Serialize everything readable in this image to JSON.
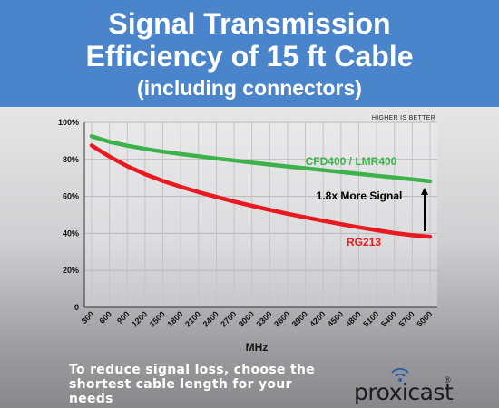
{
  "header": {
    "title_line1": "Signal Transmission",
    "title_line2": "Efficiency of 15 ft Cable",
    "title_line3": "(including connectors)"
  },
  "colors": {
    "header_bg": "#4a84cb",
    "green_series": "#3cb24a",
    "red_series": "#e8191f",
    "arrow": "#000000"
  },
  "chart_data": {
    "type": "line",
    "title": "Signal Transmission Efficiency of 15 ft Cable (including connectors)",
    "xlabel": "MHz",
    "ylabel": "",
    "x": [
      300,
      600,
      900,
      1200,
      1500,
      1800,
      2100,
      2400,
      2700,
      3000,
      3300,
      3600,
      3900,
      4200,
      4500,
      4800,
      5100,
      5400,
      5700,
      6000
    ],
    "x_tick_labels": [
      "300",
      "600",
      "900",
      "1200",
      "1500",
      "1800",
      "2100",
      "2400",
      "2700",
      "3000",
      "3300",
      "3600",
      "3900",
      "4200",
      "4500",
      "4800",
      "5100",
      "5400",
      "5700",
      "6000"
    ],
    "y_tick_labels": [
      "0",
      "20%",
      "40%",
      "60%",
      "80%",
      "100%"
    ],
    "y_ticks": [
      0,
      20,
      40,
      60,
      80,
      100
    ],
    "ylim": [
      0,
      100
    ],
    "grid": true,
    "corner_note": "HIGHER IS BETTER",
    "series": [
      {
        "name": "CFD400 / LMR400",
        "color": "#3cb24a",
        "values": [
          92.5,
          89.5,
          87.4,
          85.7,
          84.2,
          82.9,
          81.7,
          80.5,
          79.4,
          78.3,
          77.2,
          76.2,
          75.2,
          74.2,
          73.2,
          72.2,
          71.2,
          70.2,
          69.2,
          68.2
        ]
      },
      {
        "name": "RG213",
        "color": "#e8191f",
        "values": [
          87.5,
          81.5,
          76.3,
          72.0,
          68.4,
          65.2,
          62.3,
          59.7,
          57.2,
          54.9,
          52.7,
          50.6,
          48.7,
          46.8,
          45.0,
          43.3,
          41.7,
          40.2,
          39.0,
          38.2
        ]
      }
    ],
    "annotation": {
      "text": "1.8x More Signal",
      "arrow_at_x": 6000,
      "arrow_from": 38.2,
      "arrow_to": 68.2
    }
  },
  "footer": {
    "note_line1": "To reduce signal loss, choose the",
    "note_line2": "shortest cable length for your needs",
    "brand": "proxicast",
    "brand_mark": "®"
  }
}
